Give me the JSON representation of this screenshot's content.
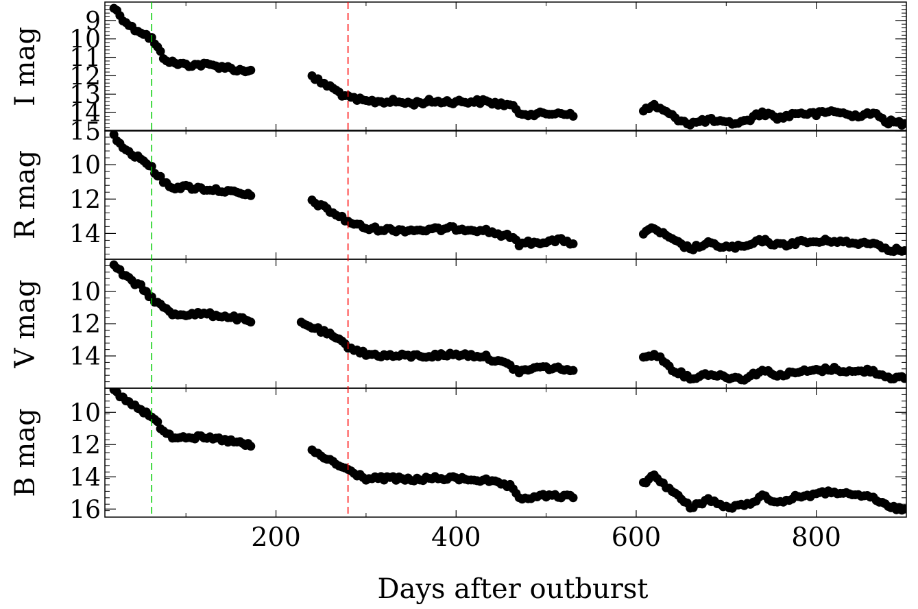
{
  "chart_data": {
    "type": "scatter",
    "xlabel": "Days after outburst",
    "xlim": [
      10,
      900
    ],
    "x_ticks": [
      200,
      400,
      600,
      800
    ],
    "x_tick_labels": [
      "200",
      "400",
      "600",
      "800"
    ],
    "marker_color": "#000000",
    "reference_lines": [
      {
        "x": 62,
        "color": "#00cc00",
        "style": "dashed"
      },
      {
        "x": 280,
        "color": "#ff0000",
        "style": "dashed"
      }
    ],
    "panels": [
      {
        "ylabel": "I mag",
        "ylim": [
          15,
          8
        ],
        "y_ticks": [
          9,
          10,
          11,
          12,
          13,
          14,
          15
        ],
        "y_tick_labels": [
          "9",
          "10",
          "11",
          "12",
          "13",
          "14",
          "15"
        ],
        "segments": [
          [
            [
              20,
              8.3
            ],
            [
              30,
              8.9
            ],
            [
              40,
              9.4
            ],
            [
              50,
              9.6
            ],
            [
              62,
              10.0
            ],
            [
              75,
              11.0
            ],
            [
              85,
              11.3
            ],
            [
              100,
              11.4
            ],
            [
              120,
              11.4
            ],
            [
              140,
              11.5
            ],
            [
              160,
              11.7
            ],
            [
              172,
              11.7
            ]
          ],
          [
            [
              240,
              12.1
            ],
            [
              260,
              12.6
            ],
            [
              280,
              13.2
            ],
            [
              300,
              13.4
            ],
            [
              330,
              13.4
            ],
            [
              350,
              13.5
            ],
            [
              370,
              13.4
            ],
            [
              400,
              13.4
            ],
            [
              430,
              13.4
            ],
            [
              460,
              13.6
            ],
            [
              470,
              14.0
            ],
            [
              490,
              14.1
            ],
            [
              520,
              14.0
            ],
            [
              530,
              14.2
            ]
          ],
          [
            [
              608,
              13.9
            ],
            [
              620,
              13.6
            ],
            [
              640,
              14.2
            ],
            [
              660,
              14.6
            ],
            [
              680,
              14.4
            ],
            [
              700,
              14.6
            ],
            [
              720,
              14.5
            ],
            [
              740,
              14.0
            ],
            [
              760,
              14.3
            ],
            [
              780,
              14.0
            ],
            [
              800,
              14.1
            ],
            [
              820,
              13.9
            ],
            [
              840,
              14.2
            ],
            [
              860,
              14.0
            ],
            [
              880,
              14.5
            ],
            [
              898,
              14.6
            ]
          ]
        ]
      },
      {
        "ylabel": "R mag",
        "ylim": [
          15.5,
          8
        ],
        "y_ticks": [
          10,
          12,
          14
        ],
        "y_tick_labels": [
          "10",
          "12",
          "14"
        ],
        "segments": [
          [
            [
              20,
              8.3
            ],
            [
              30,
              8.9
            ],
            [
              40,
              9.4
            ],
            [
              50,
              9.6
            ],
            [
              62,
              10.2
            ],
            [
              75,
              11.0
            ],
            [
              85,
              11.3
            ],
            [
              100,
              11.3
            ],
            [
              120,
              11.4
            ],
            [
              140,
              11.5
            ],
            [
              160,
              11.7
            ],
            [
              172,
              11.8
            ]
          ],
          [
            [
              240,
              12.1
            ],
            [
              260,
              12.7
            ],
            [
              280,
              13.3
            ],
            [
              300,
              13.7
            ],
            [
              330,
              13.8
            ],
            [
              350,
              13.8
            ],
            [
              370,
              13.8
            ],
            [
              400,
              13.7
            ],
            [
              430,
              13.8
            ],
            [
              460,
              14.2
            ],
            [
              470,
              14.6
            ],
            [
              490,
              14.5
            ],
            [
              520,
              14.4
            ],
            [
              530,
              14.6
            ]
          ],
          [
            [
              608,
              14.0
            ],
            [
              620,
              13.7
            ],
            [
              640,
              14.4
            ],
            [
              660,
              14.9
            ],
            [
              680,
              14.6
            ],
            [
              700,
              14.8
            ],
            [
              720,
              14.8
            ],
            [
              740,
              14.4
            ],
            [
              760,
              14.7
            ],
            [
              780,
              14.5
            ],
            [
              800,
              14.5
            ],
            [
              820,
              14.4
            ],
            [
              840,
              14.6
            ],
            [
              860,
              14.5
            ],
            [
              880,
              14.9
            ],
            [
              898,
              15.0
            ]
          ]
        ]
      },
      {
        "ylabel": "V mag",
        "ylim": [
          16,
          8
        ],
        "y_ticks": [
          10,
          12,
          14
        ],
        "y_tick_labels": [
          "10",
          "12",
          "14"
        ],
        "segments": [
          [
            [
              20,
              8.4
            ],
            [
              30,
              8.9
            ],
            [
              40,
              9.4
            ],
            [
              50,
              9.7
            ],
            [
              62,
              10.4
            ],
            [
              75,
              11.0
            ],
            [
              85,
              11.4
            ],
            [
              100,
              11.4
            ],
            [
              120,
              11.4
            ],
            [
              140,
              11.5
            ],
            [
              160,
              11.7
            ],
            [
              172,
              11.9
            ]
          ],
          [
            [
              228,
              12.0
            ],
            [
              240,
              12.2
            ],
            [
              260,
              12.7
            ],
            [
              280,
              13.4
            ],
            [
              300,
              13.9
            ],
            [
              330,
              14.0
            ],
            [
              350,
              14.0
            ],
            [
              370,
              14.0
            ],
            [
              400,
              13.9
            ],
            [
              430,
              14.0
            ],
            [
              460,
              14.6
            ],
            [
              470,
              15.0
            ],
            [
              490,
              14.7
            ],
            [
              520,
              14.8
            ],
            [
              530,
              14.9
            ]
          ],
          [
            [
              608,
              14.2
            ],
            [
              620,
              13.8
            ],
            [
              640,
              14.8
            ],
            [
              660,
              15.4
            ],
            [
              680,
              15.1
            ],
            [
              700,
              15.3
            ],
            [
              720,
              15.4
            ],
            [
              740,
              14.9
            ],
            [
              760,
              15.2
            ],
            [
              780,
              15.0
            ],
            [
              800,
              14.9
            ],
            [
              820,
              14.8
            ],
            [
              840,
              15.0
            ],
            [
              860,
              14.9
            ],
            [
              880,
              15.3
            ],
            [
              898,
              15.4
            ]
          ]
        ]
      },
      {
        "ylabel": "B mag",
        "ylim": [
          16.5,
          8.5
        ],
        "y_ticks": [
          10,
          12,
          14,
          16
        ],
        "y_tick_labels": [
          "10",
          "12",
          "14",
          "16"
        ],
        "segments": [
          [
            [
              20,
              8.7
            ],
            [
              30,
              9.1
            ],
            [
              40,
              9.5
            ],
            [
              50,
              9.8
            ],
            [
              62,
              10.3
            ],
            [
              75,
              11.1
            ],
            [
              85,
              11.5
            ],
            [
              100,
              11.5
            ],
            [
              120,
              11.6
            ],
            [
              140,
              11.7
            ],
            [
              160,
              11.9
            ],
            [
              172,
              12.1
            ]
          ],
          [
            [
              240,
              12.4
            ],
            [
              260,
              13.0
            ],
            [
              280,
              13.6
            ],
            [
              300,
              14.1
            ],
            [
              330,
              14.1
            ],
            [
              350,
              14.2
            ],
            [
              370,
              14.1
            ],
            [
              400,
              14.1
            ],
            [
              430,
              14.2
            ],
            [
              460,
              14.6
            ],
            [
              470,
              15.4
            ],
            [
              490,
              15.2
            ],
            [
              520,
              15.2
            ],
            [
              530,
              15.3
            ]
          ],
          [
            [
              608,
              14.4
            ],
            [
              620,
              13.9
            ],
            [
              640,
              14.9
            ],
            [
              660,
              15.9
            ],
            [
              680,
              15.4
            ],
            [
              700,
              15.9
            ],
            [
              720,
              15.8
            ],
            [
              740,
              15.2
            ],
            [
              760,
              15.6
            ],
            [
              780,
              15.2
            ],
            [
              800,
              15.1
            ],
            [
              820,
              14.9
            ],
            [
              840,
              15.2
            ],
            [
              860,
              15.2
            ],
            [
              880,
              15.9
            ],
            [
              898,
              16.0
            ]
          ]
        ]
      }
    ]
  }
}
